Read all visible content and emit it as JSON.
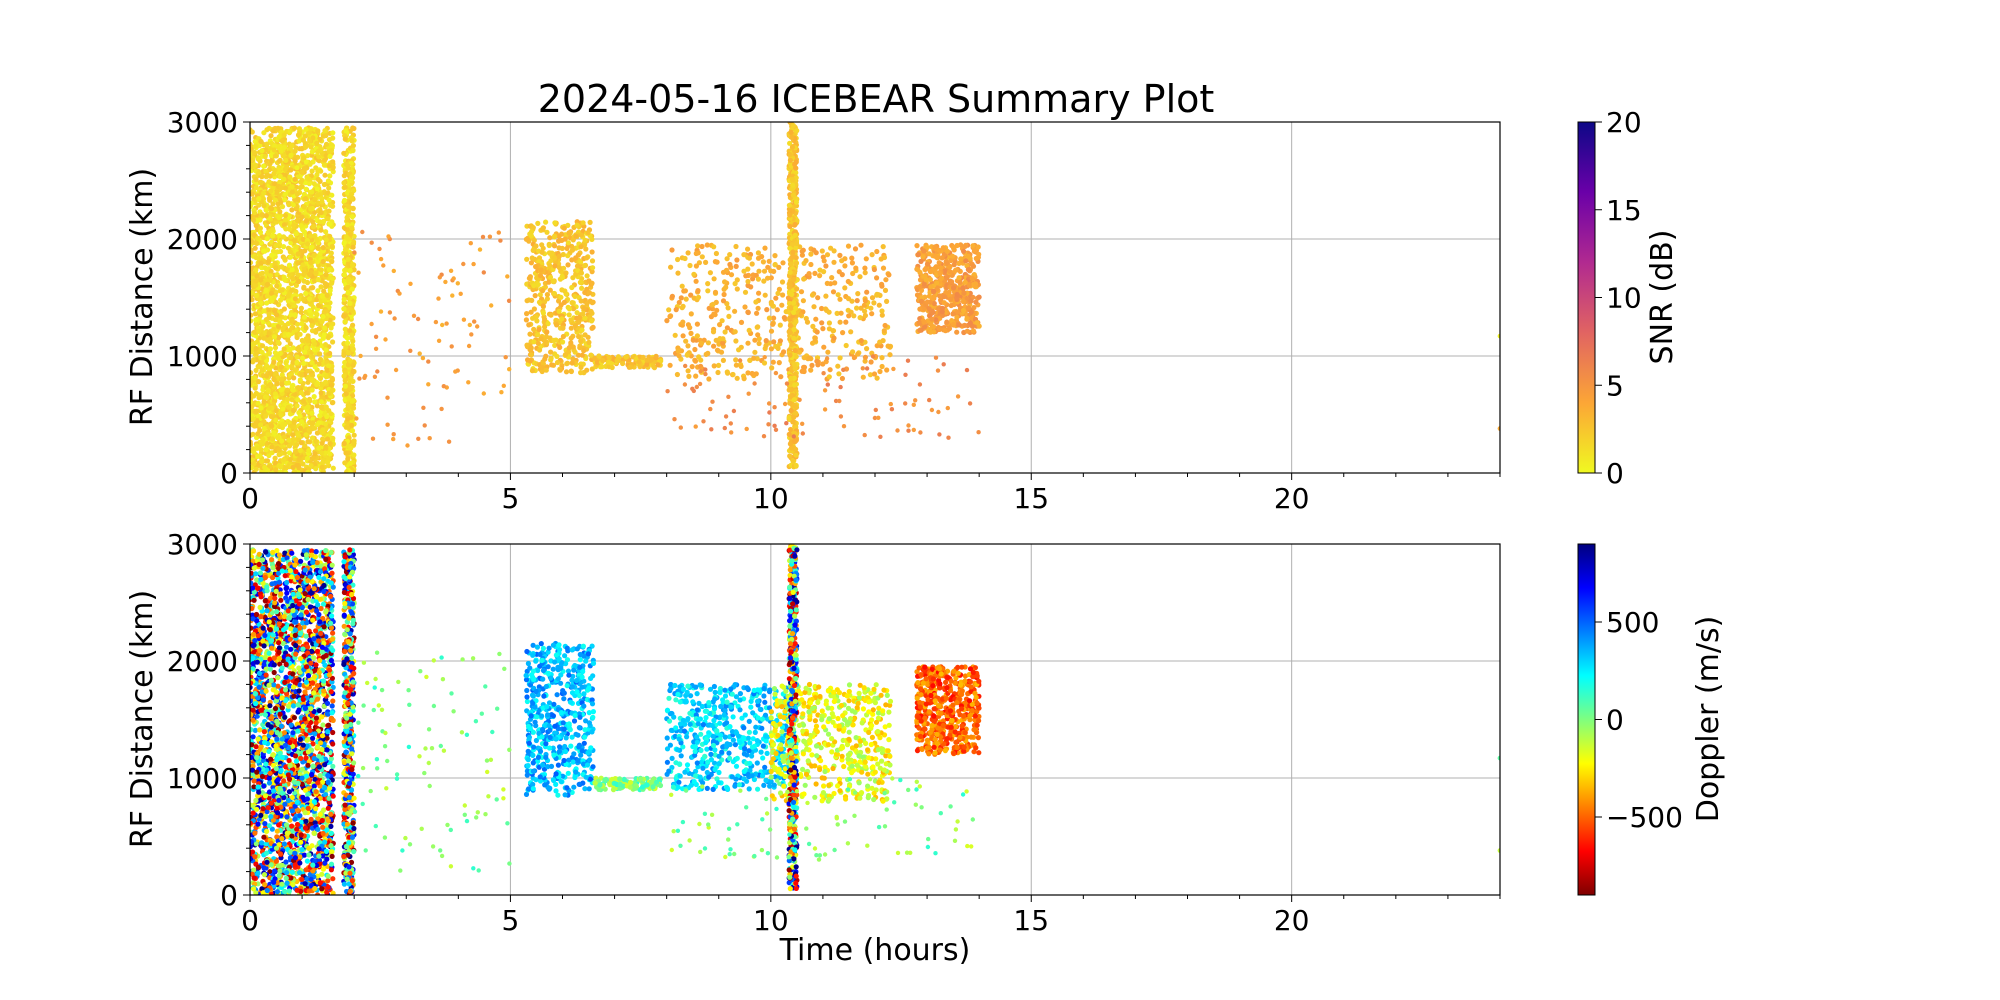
{
  "title": "2024-05-16 ICEBEAR Summary Plot",
  "chart_data": [
    {
      "type": "scatter",
      "panel": "snr",
      "xlabel": "",
      "ylabel": "RF Distance (km)",
      "xlim": [
        0,
        24
      ],
      "ylim": [
        0,
        3000
      ],
      "xticks": [
        0,
        5,
        10,
        15,
        20
      ],
      "yticks": [
        0,
        1000,
        2000,
        3000
      ],
      "grid": true,
      "colorbar": {
        "label": "SNR (dB)",
        "range": [
          0,
          20
        ],
        "ticks": [
          0,
          5,
          10,
          15,
          20
        ],
        "colormap": "plasma_r",
        "stops": [
          "#f0f921",
          "#fca636",
          "#e16462",
          "#b12a90",
          "#6a00a8",
          "#0d0887"
        ]
      },
      "point_color_default": "#f7d22a",
      "regions": [
        {
          "x": [
            0,
            1.6
          ],
          "y": [
            0,
            2950
          ],
          "level": 0.05,
          "density": "very high"
        },
        {
          "x": [
            1.8,
            2.0
          ],
          "y": [
            0,
            2950
          ],
          "level": 0.05,
          "density": "high"
        },
        {
          "x": [
            5.3,
            6.6
          ],
          "y": [
            850,
            2150
          ],
          "level": 0.1,
          "density": "high"
        },
        {
          "x": [
            6.6,
            7.9
          ],
          "y": [
            900,
            1000
          ],
          "level": 0.1,
          "density": "medium"
        },
        {
          "x": [
            8.0,
            12.3
          ],
          "y": [
            800,
            1950
          ],
          "level": 0.15,
          "density": "high"
        },
        {
          "x": [
            10.35,
            10.5
          ],
          "y": [
            50,
            3000
          ],
          "level": 0.1,
          "density": "high"
        },
        {
          "x": [
            12.8,
            14.0
          ],
          "y": [
            1200,
            1950
          ],
          "level": 0.2,
          "density": "high"
        },
        {
          "x": [
            8.0,
            14.0
          ],
          "y": [
            300,
            1000
          ],
          "level": 0.25,
          "density": "sparse"
        },
        {
          "x": [
            2.0,
            5.0
          ],
          "y": [
            200,
            2100
          ],
          "level": 0.2,
          "density": "sparse"
        }
      ],
      "points": [
        {
          "x": 24.0,
          "y": 1170,
          "level": 0.05
        },
        {
          "x": 24.0,
          "y": 380,
          "level": 0.2
        }
      ]
    },
    {
      "type": "scatter",
      "panel": "doppler",
      "xlabel": "Time (hours)",
      "ylabel": "RF Distance (km)",
      "xlim": [
        0,
        24
      ],
      "ylim": [
        0,
        3000
      ],
      "xticks": [
        0,
        5,
        10,
        15,
        20
      ],
      "yticks": [
        0,
        1000,
        2000,
        3000
      ],
      "grid": true,
      "colorbar": {
        "label": "Doppler (m/s)",
        "range": [
          -900,
          900
        ],
        "ticks": [
          -500,
          0,
          500
        ],
        "tick_labels": [
          "−500",
          "0",
          "500"
        ],
        "colormap": "jet_r",
        "stops": [
          "#7f0000",
          "#ff0000",
          "#ff7f00",
          "#ffff00",
          "#7fff7f",
          "#00ffff",
          "#007fff",
          "#0000ff",
          "#00007f"
        ]
      },
      "point_color_default": "#74ff74",
      "regions": [
        {
          "x": [
            0,
            1.6
          ],
          "y": [
            0,
            2950
          ],
          "value": "mixed",
          "density": "very high"
        },
        {
          "x": [
            1.8,
            2.0
          ],
          "y": [
            0,
            2950
          ],
          "value": "mixed",
          "density": "high"
        },
        {
          "x": [
            5.3,
            6.6
          ],
          "y": [
            850,
            2150
          ],
          "value": 350,
          "density": "high"
        },
        {
          "x": [
            6.6,
            7.9
          ],
          "y": [
            900,
            1000
          ],
          "value": 0,
          "density": "medium"
        },
        {
          "x": [
            8.0,
            10.3
          ],
          "y": [
            900,
            1800
          ],
          "value": 300,
          "density": "high"
        },
        {
          "x": [
            10.0,
            12.3
          ],
          "y": [
            800,
            1800
          ],
          "value": -200,
          "density": "high"
        },
        {
          "x": [
            10.35,
            10.5
          ],
          "y": [
            50,
            3000
          ],
          "value": "mixed",
          "density": "high"
        },
        {
          "x": [
            12.8,
            14.0
          ],
          "y": [
            1200,
            1950
          ],
          "value": -500,
          "density": "high"
        },
        {
          "x": [
            8.0,
            14.0
          ],
          "y": [
            300,
            1000
          ],
          "value": 0,
          "density": "sparse"
        },
        {
          "x": [
            2.0,
            5.0
          ],
          "y": [
            200,
            2100
          ],
          "value": 0,
          "density": "sparse"
        }
      ],
      "points": [
        {
          "x": 24.0,
          "y": 1170,
          "value": 0
        },
        {
          "x": 24.0,
          "y": 380,
          "value": 0
        }
      ]
    }
  ]
}
